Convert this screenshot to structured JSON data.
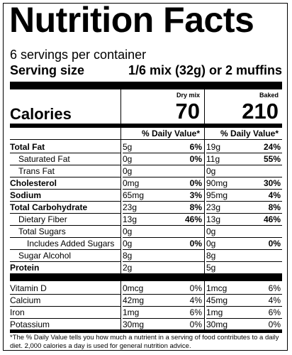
{
  "title": "Nutrition Facts",
  "servings_per_container": "6 servings per container",
  "serving_size_label": "Serving size",
  "serving_size_value": "1/6 mix (32g) or 2 muffins",
  "calories_label": "Calories",
  "columns": [
    {
      "header": "Dry mix",
      "calories": "70",
      "dv_header": "% Daily Value*"
    },
    {
      "header": "Baked",
      "calories": "210",
      "dv_header": "% Daily Value*"
    }
  ],
  "rows": [
    {
      "name": "Total Fat",
      "bold": true,
      "indent": 0,
      "dry_amt": "5g",
      "dry_pct": "6%",
      "baked_amt": "19g",
      "baked_pct": "24%"
    },
    {
      "name": "Saturated Fat",
      "bold": false,
      "indent": 1,
      "dry_amt": "0g",
      "dry_pct": "0%",
      "baked_amt": "11g",
      "baked_pct": "55%"
    },
    {
      "name": "Trans Fat",
      "bold": false,
      "indent": 1,
      "dry_amt": "0g",
      "dry_pct": "",
      "baked_amt": "0g",
      "baked_pct": ""
    },
    {
      "name": "Cholesterol",
      "bold": true,
      "indent": 0,
      "dry_amt": "0mg",
      "dry_pct": "0%",
      "baked_amt": "90mg",
      "baked_pct": "30%"
    },
    {
      "name": "Sodium",
      "bold": true,
      "indent": 0,
      "dry_amt": "65mg",
      "dry_pct": "3%",
      "baked_amt": "95mg",
      "baked_pct": "4%"
    },
    {
      "name": "Total Carbohydrate",
      "bold": true,
      "indent": 0,
      "dry_amt": "23g",
      "dry_pct": "8%",
      "baked_amt": "23g",
      "baked_pct": "8%"
    },
    {
      "name": "Dietary Fiber",
      "bold": false,
      "indent": 1,
      "dry_amt": "13g",
      "dry_pct": "46%",
      "baked_amt": "13g",
      "baked_pct": "46%"
    },
    {
      "name": "Total Sugars",
      "bold": false,
      "indent": 1,
      "dry_amt": "0g",
      "dry_pct": "",
      "baked_amt": "0g",
      "baked_pct": ""
    },
    {
      "name": "Includes Added Sugars",
      "bold": false,
      "indent": 2,
      "dry_amt": "0g",
      "dry_pct": "0%",
      "baked_amt": "0g",
      "baked_pct": "0%"
    },
    {
      "name": "Sugar Alcohol",
      "bold": false,
      "indent": 1,
      "dry_amt": "8g",
      "dry_pct": "",
      "baked_amt": "8g",
      "baked_pct": ""
    },
    {
      "name": "Protein",
      "bold": true,
      "indent": 0,
      "dry_amt": "2g",
      "dry_pct": "",
      "baked_amt": "5g",
      "baked_pct": ""
    }
  ],
  "vitamins": [
    {
      "name": "Vitamin D",
      "dry_amt": "0mcg",
      "dry_pct": "0%",
      "baked_amt": "1mcg",
      "baked_pct": "6%"
    },
    {
      "name": "Calcium",
      "dry_amt": "42mg",
      "dry_pct": "4%",
      "baked_amt": "45mg",
      "baked_pct": "4%"
    },
    {
      "name": "Iron",
      "dry_amt": "1mg",
      "dry_pct": "6%",
      "baked_amt": "1mg",
      "baked_pct": "6%"
    },
    {
      "name": "Potassium",
      "dry_amt": "30mg",
      "dry_pct": "0%",
      "baked_amt": "30mg",
      "baked_pct": "0%"
    }
  ],
  "footnote": "*The % Daily Value tells you how much a nutrient in a serving of food contributes to a daily diet. 2,000 calories a day is used for general nutrition advice."
}
